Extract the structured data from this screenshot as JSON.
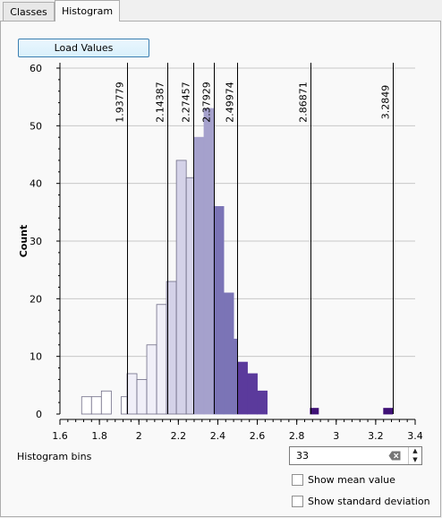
{
  "tabs": [
    {
      "label": "Classes",
      "active": false
    },
    {
      "label": "Histogram",
      "active": true
    }
  ],
  "load_button": "Load Values",
  "histogram_bins_label": "Histogram bins",
  "histogram_bins_value": "33",
  "show_mean_label": "Show mean value",
  "show_mean_checked": false,
  "show_std_label": "Show standard deviation",
  "show_std_checked": false,
  "chart_data": {
    "type": "bar",
    "ylabel": "Count",
    "xlabel": "",
    "xlim": [
      1.6,
      3.4
    ],
    "ylim": [
      0,
      60
    ],
    "x_ticks": [
      "1.6",
      "1.8",
      "2",
      "2.2",
      "2.4",
      "2.6",
      "2.8",
      "3",
      "3.2",
      "3.4"
    ],
    "y_ticks": [
      "0",
      "10",
      "20",
      "30",
      "40",
      "50",
      "60"
    ],
    "grid": true,
    "bins": [
      {
        "x0": 1.71,
        "x1": 1.76,
        "count": 3,
        "class": 0
      },
      {
        "x0": 1.76,
        "x1": 1.81,
        "count": 3,
        "class": 0
      },
      {
        "x0": 1.81,
        "x1": 1.86,
        "count": 4,
        "class": 0
      },
      {
        "x0": 1.86,
        "x1": 1.91,
        "count": 0,
        "class": 0
      },
      {
        "x0": 1.91,
        "x1": 1.94,
        "count": 3,
        "class": 0
      },
      {
        "x0": 1.94,
        "x1": 1.99,
        "count": 7,
        "class": 1
      },
      {
        "x0": 1.99,
        "x1": 2.04,
        "count": 6,
        "class": 1
      },
      {
        "x0": 2.04,
        "x1": 2.09,
        "count": 12,
        "class": 1
      },
      {
        "x0": 2.09,
        "x1": 2.14,
        "count": 19,
        "class": 1
      },
      {
        "x0": 2.14,
        "x1": 2.19,
        "count": 23,
        "class": 2
      },
      {
        "x0": 2.19,
        "x1": 2.24,
        "count": 44,
        "class": 2
      },
      {
        "x0": 2.24,
        "x1": 2.28,
        "count": 41,
        "class": 2
      },
      {
        "x0": 2.28,
        "x1": 2.33,
        "count": 48,
        "class": 3
      },
      {
        "x0": 2.33,
        "x1": 2.38,
        "count": 53,
        "class": 3
      },
      {
        "x0": 2.38,
        "x1": 2.43,
        "count": 36,
        "class": 4
      },
      {
        "x0": 2.43,
        "x1": 2.48,
        "count": 21,
        "class": 4
      },
      {
        "x0": 2.48,
        "x1": 2.5,
        "count": 13,
        "class": 4
      },
      {
        "x0": 2.5,
        "x1": 2.55,
        "count": 9,
        "class": 5
      },
      {
        "x0": 2.55,
        "x1": 2.6,
        "count": 7,
        "class": 5
      },
      {
        "x0": 2.6,
        "x1": 2.65,
        "count": 4,
        "class": 5
      },
      {
        "x0": 2.86871,
        "x1": 2.91,
        "count": 1,
        "class": 6
      },
      {
        "x0": 3.24,
        "x1": 3.2849,
        "count": 1,
        "class": 6
      }
    ],
    "class_colors": [
      "#ffffff",
      "#f0eff8",
      "#d4d2e8",
      "#a5a1cc",
      "#7b74b6",
      "#5b3a9c",
      "#3f1176"
    ],
    "breaks": [
      1.93779,
      2.14387,
      2.27457,
      2.37929,
      2.49974,
      2.86871,
      3.2849
    ],
    "break_labels": [
      "1.93779",
      "2.14387",
      "2.27457",
      "2.37929",
      "2.49974",
      "2.86871",
      "3.2849"
    ]
  }
}
